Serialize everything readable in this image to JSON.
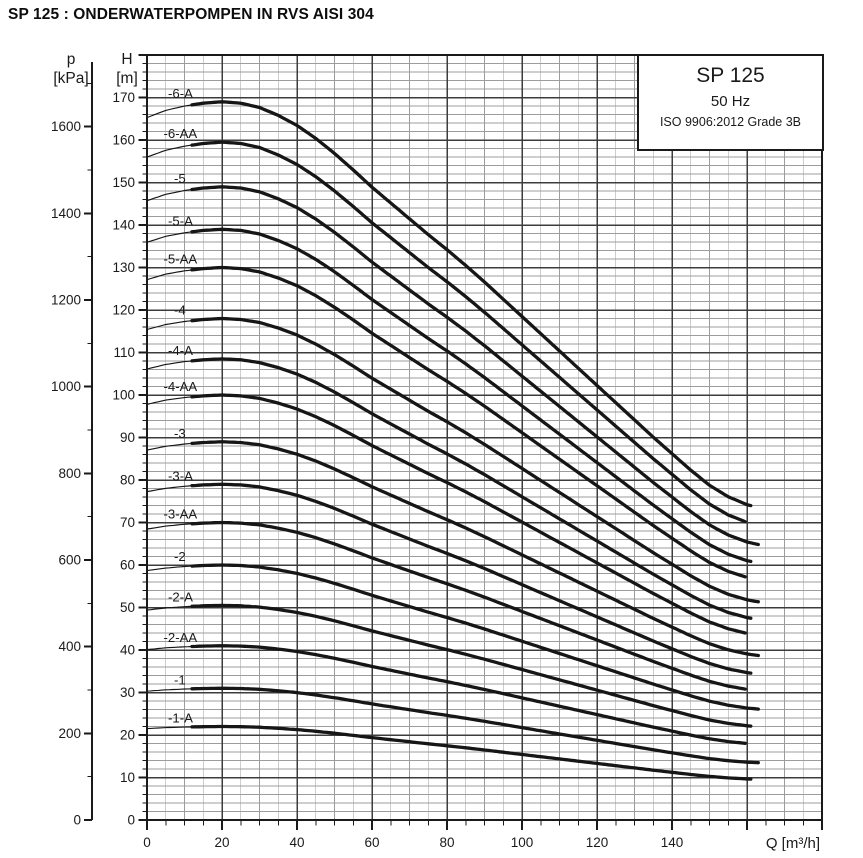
{
  "page_title": "SP 125 : ONDERWATERPOMPEN IN RVS AISI 304",
  "chart_data": {
    "type": "line",
    "description": "Pump head-capacity (Q-H) performance curves",
    "info_box": {
      "model": "SP 125",
      "frequency": "50 Hz",
      "standard": "ISO 9906:2012 Grade 3B"
    },
    "x_axis": {
      "label": "Q [m³/h]",
      "min": 0,
      "max": 180,
      "major_step": 20,
      "minor_step": 5,
      "tick_labels": [
        "0",
        "20",
        "40",
        "60",
        "80",
        "100",
        "120",
        "140"
      ]
    },
    "y_axes": [
      {
        "name": "p",
        "unit": "[kPa]",
        "min": 0,
        "max": 1700,
        "major_step": 200,
        "minor_step": 100,
        "kpa_per_m": 9.80665,
        "tick_labels": [
          "0",
          "200",
          "400",
          "600",
          "800",
          "1000",
          "1200",
          "1400",
          "1600"
        ]
      },
      {
        "name": "H",
        "unit": "[m]",
        "min": 0,
        "max": 180,
        "major_step": 10,
        "minor_step": 2,
        "tick_labels": [
          "0",
          "10",
          "20",
          "30",
          "40",
          "50",
          "60",
          "70",
          "80",
          "90",
          "100",
          "110",
          "120",
          "130",
          "140",
          "150",
          "160",
          "170"
        ]
      }
    ],
    "grid": {
      "minor_x_step": 5,
      "minor_y_step": 2,
      "major_x_step": 20,
      "major_y_step": 10
    },
    "legend_position": "top-right",
    "series": [
      {
        "label": "-6-A",
        "shutoff_head_m": 166,
        "peak_head_m": 169,
        "end_head_m": 74,
        "max_q_m3h": 161,
        "thin_until_q": 12
      },
      {
        "label": "-6-AA",
        "shutoff_head_m": 156,
        "peak_head_m": 159.5,
        "end_head_m": 70,
        "max_q_m3h": 159.5,
        "thin_until_q": 12
      },
      {
        "label": "-5",
        "shutoff_head_m": 146,
        "peak_head_m": 149,
        "end_head_m": 65,
        "max_q_m3h": 163,
        "thin_until_q": 12
      },
      {
        "label": "-5-A",
        "shutoff_head_m": 136,
        "peak_head_m": 139,
        "end_head_m": 61,
        "max_q_m3h": 161,
        "thin_until_q": 12
      },
      {
        "label": "-5-AA",
        "shutoff_head_m": 127,
        "peak_head_m": 130,
        "end_head_m": 57,
        "max_q_m3h": 159.5,
        "thin_until_q": 12
      },
      {
        "label": "-4",
        "shutoff_head_m": 115,
        "peak_head_m": 118,
        "end_head_m": 51.5,
        "max_q_m3h": 163,
        "thin_until_q": 12
      },
      {
        "label": "-4-A",
        "shutoff_head_m": 106,
        "peak_head_m": 108.5,
        "end_head_m": 47.5,
        "max_q_m3h": 161,
        "thin_until_q": 12
      },
      {
        "label": "-4-AA",
        "shutoff_head_m": 98,
        "peak_head_m": 100,
        "end_head_m": 43.5,
        "max_q_m3h": 159.5,
        "thin_until_q": 12
      },
      {
        "label": "-3",
        "shutoff_head_m": 87,
        "peak_head_m": 89,
        "end_head_m": 39,
        "max_q_m3h": 163,
        "thin_until_q": 12
      },
      {
        "label": "-3-A",
        "shutoff_head_m": 77,
        "peak_head_m": 79,
        "end_head_m": 34.5,
        "max_q_m3h": 161,
        "thin_until_q": 12
      },
      {
        "label": "-3-AA",
        "shutoff_head_m": 68.5,
        "peak_head_m": 70,
        "end_head_m": 30.5,
        "max_q_m3h": 159.5,
        "thin_until_q": 12
      },
      {
        "label": "-2",
        "shutoff_head_m": 58.5,
        "peak_head_m": 60,
        "end_head_m": 26,
        "max_q_m3h": 163,
        "thin_until_q": 12
      },
      {
        "label": "-2-A",
        "shutoff_head_m": 49.5,
        "peak_head_m": 50.5,
        "end_head_m": 22,
        "max_q_m3h": 161,
        "thin_until_q": 12
      },
      {
        "label": "-2-AA",
        "shutoff_head_m": 40,
        "peak_head_m": 41,
        "end_head_m": 18,
        "max_q_m3h": 159.5,
        "thin_until_q": 12
      },
      {
        "label": "-1",
        "shutoff_head_m": 30,
        "peak_head_m": 31,
        "end_head_m": 13.5,
        "max_q_m3h": 163,
        "thin_until_q": 12
      },
      {
        "label": "-1-A",
        "shutoff_head_m": 21.5,
        "peak_head_m": 22,
        "end_head_m": 9.5,
        "max_q_m3h": 161,
        "thin_until_q": 12
      }
    ],
    "curve_shape": {
      "q": [
        0,
        5,
        10,
        15,
        20,
        25,
        30,
        35,
        40,
        45,
        50,
        55,
        60,
        65,
        70,
        75,
        80,
        85,
        90,
        95,
        100,
        105,
        110,
        115,
        120,
        125,
        130,
        135,
        140,
        145,
        150,
        155,
        160,
        163
      ],
      "ratio": [
        0.978,
        0.988,
        0.994,
        0.998,
        1.0,
        0.998,
        0.992,
        0.981,
        0.967,
        0.949,
        0.928,
        0.905,
        0.881,
        0.859,
        0.837,
        0.815,
        0.794,
        0.772,
        0.749,
        0.725,
        0.701,
        0.677,
        0.653,
        0.629,
        0.605,
        0.581,
        0.557,
        0.533,
        0.51,
        0.487,
        0.466,
        0.45,
        0.439,
        0.435
      ]
    },
    "colors": {
      "ink": "#1a1a1a",
      "curve": "#161616",
      "grid_minor": "#9c9c9c",
      "grid_major": "#3c3c3c",
      "background": "#ffffff"
    }
  }
}
